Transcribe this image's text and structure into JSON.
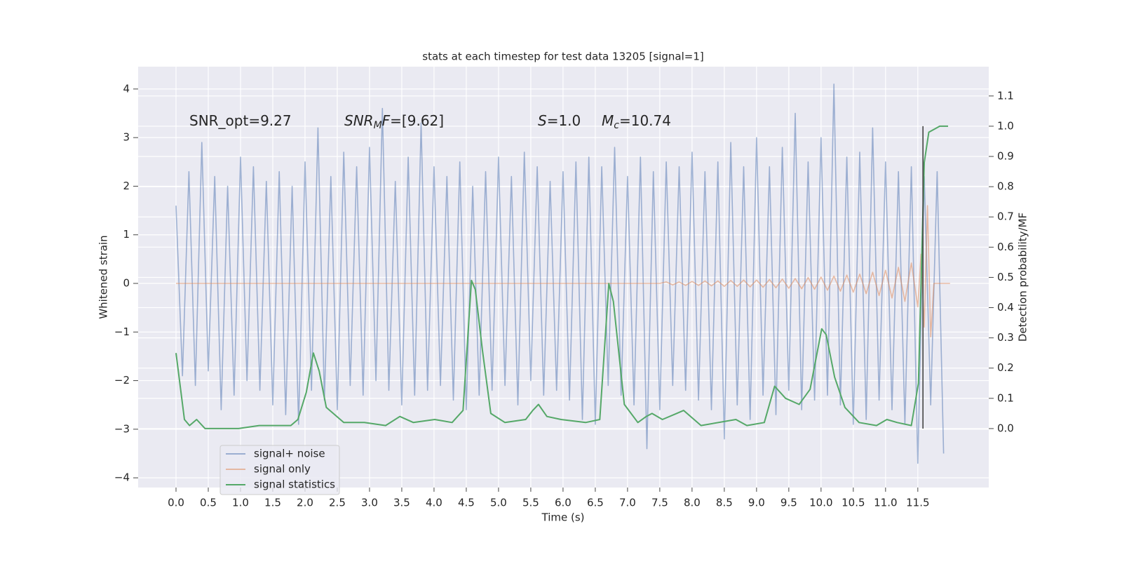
{
  "chart_data": {
    "type": "line",
    "title": "stats at each timestep for test data 13205 [signal=1]",
    "xlabel": "Time (s)",
    "ylabel": "Whitened strain",
    "y2label": "Detection probability/MF",
    "xlim": [
      -0.587,
      12.6
    ],
    "ylim": [
      -4.2,
      4.46
    ],
    "y2lim": [
      -0.195,
      1.197
    ],
    "xticks": [
      {
        "value": 0,
        "label": "0.0"
      },
      0.5,
      {
        "value": 1,
        "label": "1.0"
      },
      1.5,
      {
        "value": 2,
        "label": "2.0"
      },
      2.5,
      {
        "value": 3,
        "label": "3.0"
      },
      3.5,
      {
        "value": 4,
        "label": "4.0"
      },
      4.5,
      {
        "value": 5,
        "label": "5.0"
      },
      5.5,
      {
        "value": 6,
        "label": "6.0"
      },
      6.5,
      {
        "value": 7,
        "label": "7.0"
      },
      7.5,
      {
        "value": 8,
        "label": "8.0"
      },
      8.5,
      {
        "value": 9,
        "label": "9.0"
      },
      9.5,
      {
        "value": 10,
        "label": "10.0"
      },
      10.5,
      {
        "value": 11,
        "label": "11.0"
      },
      11.5
    ],
    "yticks": [
      {
        "value": -4,
        "label": "−4"
      },
      {
        "value": -3,
        "label": "−3"
      },
      {
        "value": -2,
        "label": "−2"
      },
      {
        "value": -1,
        "label": "−1"
      },
      0,
      1,
      2,
      3,
      4
    ],
    "y2ticks": [
      {
        "value": 0,
        "label": "0.0"
      },
      0.1,
      0.2,
      0.3,
      0.4,
      0.5,
      0.6,
      0.7,
      0.8,
      0.9,
      {
        "value": 1,
        "label": "1.0"
      },
      1.1
    ],
    "grid": true,
    "legend": "lower left",
    "annotations": [
      [
        {
          "text": "SNR_opt=9.27"
        }
      ],
      [
        {
          "text": "SNR",
          "italic": true
        },
        {
          "text": "M",
          "italic": true,
          "sub": true
        },
        {
          "text": "F",
          "italic": true
        },
        {
          "text": "=[9.62]"
        }
      ],
      [
        {
          "text": "S",
          "italic": true
        },
        {
          "text": "=1.0"
        }
      ],
      [
        {
          "text": "M",
          "italic": true
        },
        {
          "text": "c",
          "italic": true,
          "sub": true
        },
        {
          "text": "=10.74"
        }
      ]
    ],
    "series": [
      {
        "name": "signal+ noise",
        "color": "#4c72b0",
        "opacity": 0.5,
        "x": [
          0.0,
          0.1,
          0.2,
          0.3,
          0.4,
          0.5,
          0.6,
          0.7,
          0.8,
          0.9,
          1.0,
          1.1,
          1.2,
          1.3,
          1.4,
          1.5,
          1.6,
          1.7,
          1.8,
          1.9,
          2.0,
          2.1,
          2.2,
          2.3,
          2.4,
          2.5,
          2.6,
          2.7,
          2.8,
          2.9,
          3.0,
          3.1,
          3.2,
          3.3,
          3.4,
          3.5,
          3.6,
          3.7,
          3.8,
          3.9,
          4.0,
          4.1,
          4.2,
          4.3,
          4.4,
          4.5,
          4.6,
          4.7,
          4.8,
          4.9,
          5.0,
          5.1,
          5.2,
          5.3,
          5.4,
          5.5,
          5.6,
          5.7,
          5.8,
          5.9,
          6.0,
          6.1,
          6.2,
          6.3,
          6.4,
          6.5,
          6.6,
          6.7,
          6.8,
          6.9,
          7.0,
          7.1,
          7.2,
          7.3,
          7.4,
          7.5,
          7.6,
          7.7,
          7.8,
          7.9,
          8.0,
          8.1,
          8.2,
          8.3,
          8.4,
          8.5,
          8.6,
          8.7,
          8.8,
          8.9,
          9.0,
          9.1,
          9.2,
          9.3,
          9.4,
          9.5,
          9.6,
          9.7,
          9.8,
          9.9,
          10.0,
          10.1,
          10.2,
          10.3,
          10.4,
          10.5,
          10.6,
          10.7,
          10.8,
          10.9,
          11.0,
          11.1,
          11.2,
          11.3,
          11.4,
          11.5,
          11.6,
          11.7,
          11.8,
          11.9
        ],
        "values": [
          1.6,
          -1.9,
          2.3,
          -2.1,
          2.9,
          -1.8,
          2.2,
          -2.6,
          2.0,
          -2.3,
          2.6,
          -2.0,
          2.4,
          -2.2,
          2.1,
          -2.5,
          2.3,
          -2.7,
          2.0,
          -2.9,
          2.5,
          -2.2,
          3.2,
          -2.4,
          2.2,
          -2.6,
          2.7,
          -2.1,
          2.4,
          -2.3,
          2.8,
          -2.0,
          3.6,
          -2.2,
          2.1,
          -2.5,
          2.6,
          -2.3,
          3.3,
          -2.2,
          2.4,
          -2.1,
          2.2,
          -2.4,
          2.5,
          -2.6,
          2.0,
          -2.3,
          2.3,
          -2.2,
          2.6,
          -2.1,
          2.2,
          -2.5,
          2.7,
          -2.0,
          2.4,
          -2.3,
          2.1,
          -2.2,
          2.3,
          -2.4,
          2.5,
          -2.8,
          2.6,
          -2.9,
          2.4,
          -2.1,
          2.8,
          -2.3,
          2.2,
          -2.5,
          2.6,
          -3.4,
          2.3,
          -2.6,
          2.5,
          -2.1,
          2.4,
          -2.2,
          2.7,
          -2.4,
          2.3,
          -2.6,
          2.5,
          -3.2,
          2.9,
          -2.5,
          2.4,
          -2.8,
          3.0,
          -2.3,
          2.4,
          -2.7,
          2.8,
          -2.2,
          3.5,
          -2.6,
          2.5,
          -2.4,
          3.0,
          -2.3,
          4.1,
          -2.5,
          2.6,
          -2.9,
          2.7,
          -2.8,
          3.2,
          -2.4,
          2.5,
          -2.6,
          2.3,
          -2.9,
          2.4,
          -3.7,
          2.2,
          -2.5,
          2.3,
          -3.5
        ]
      },
      {
        "name": "signal only",
        "color": "#dd8452",
        "opacity": 0.5,
        "x": [
          0,
          7.5,
          7.6,
          7.7,
          7.8,
          7.9,
          8.0,
          8.1,
          8.2,
          8.3,
          8.4,
          8.5,
          8.6,
          8.7,
          8.8,
          8.9,
          9.0,
          9.1,
          9.2,
          9.3,
          9.4,
          9.5,
          9.6,
          9.7,
          9.8,
          9.9,
          10.0,
          10.1,
          10.2,
          10.3,
          10.4,
          10.5,
          10.6,
          10.7,
          10.8,
          10.9,
          11.0,
          11.1,
          11.2,
          11.3,
          11.4,
          11.5,
          11.55,
          11.6,
          11.65,
          11.7,
          11.75,
          12.0
        ],
        "values": [
          0,
          0,
          0.03,
          -0.03,
          0.03,
          -0.04,
          0.04,
          -0.04,
          0.05,
          -0.05,
          0.05,
          -0.06,
          0.06,
          -0.06,
          0.07,
          -0.07,
          0.07,
          -0.08,
          0.08,
          -0.09,
          0.09,
          -0.1,
          0.1,
          -0.11,
          0.12,
          -0.12,
          0.13,
          -0.14,
          0.15,
          -0.16,
          0.17,
          -0.18,
          0.19,
          -0.21,
          0.23,
          -0.25,
          0.27,
          -0.3,
          0.33,
          -0.37,
          0.42,
          -0.48,
          0.6,
          -0.9,
          1.6,
          -1.1,
          0.0,
          0.0
        ]
      },
      {
        "name": "signal statistics",
        "color": "#55a868",
        "opacity": 1,
        "axis": "y2",
        "x": [
          0.0,
          0.13,
          0.21,
          0.32,
          0.45,
          0.97,
          1.29,
          1.57,
          1.78,
          1.89,
          2.02,
          2.13,
          2.22,
          2.33,
          2.6,
          2.92,
          3.25,
          3.47,
          3.68,
          4.01,
          4.28,
          4.45,
          4.58,
          4.64,
          4.75,
          4.88,
          5.1,
          5.42,
          5.53,
          5.62,
          5.75,
          5.97,
          6.35,
          6.57,
          6.71,
          6.78,
          6.95,
          7.16,
          7.29,
          7.38,
          7.54,
          7.76,
          7.87,
          8.14,
          8.68,
          8.85,
          9.12,
          9.28,
          9.45,
          9.66,
          9.83,
          10.01,
          10.08,
          10.21,
          10.37,
          10.59,
          10.86,
          11.02,
          11.18,
          11.4,
          11.51,
          11.6,
          11.67,
          11.84,
          11.97
        ],
        "values": [
          0.25,
          0.03,
          0.01,
          0.03,
          0.0,
          0.0,
          0.01,
          0.01,
          0.01,
          0.03,
          0.12,
          0.25,
          0.19,
          0.07,
          0.02,
          0.02,
          0.01,
          0.04,
          0.02,
          0.03,
          0.02,
          0.06,
          0.49,
          0.46,
          0.26,
          0.05,
          0.02,
          0.03,
          0.06,
          0.08,
          0.04,
          0.03,
          0.02,
          0.03,
          0.48,
          0.42,
          0.08,
          0.02,
          0.04,
          0.05,
          0.03,
          0.05,
          0.06,
          0.01,
          0.03,
          0.01,
          0.02,
          0.14,
          0.1,
          0.08,
          0.13,
          0.33,
          0.31,
          0.17,
          0.07,
          0.02,
          0.01,
          0.03,
          0.02,
          0.01,
          0.15,
          0.88,
          0.98,
          1.0,
          1.0
        ]
      }
    ],
    "vline": {
      "x": 11.58,
      "y2": [
        0.0,
        1.0
      ],
      "color": "#444444"
    }
  }
}
